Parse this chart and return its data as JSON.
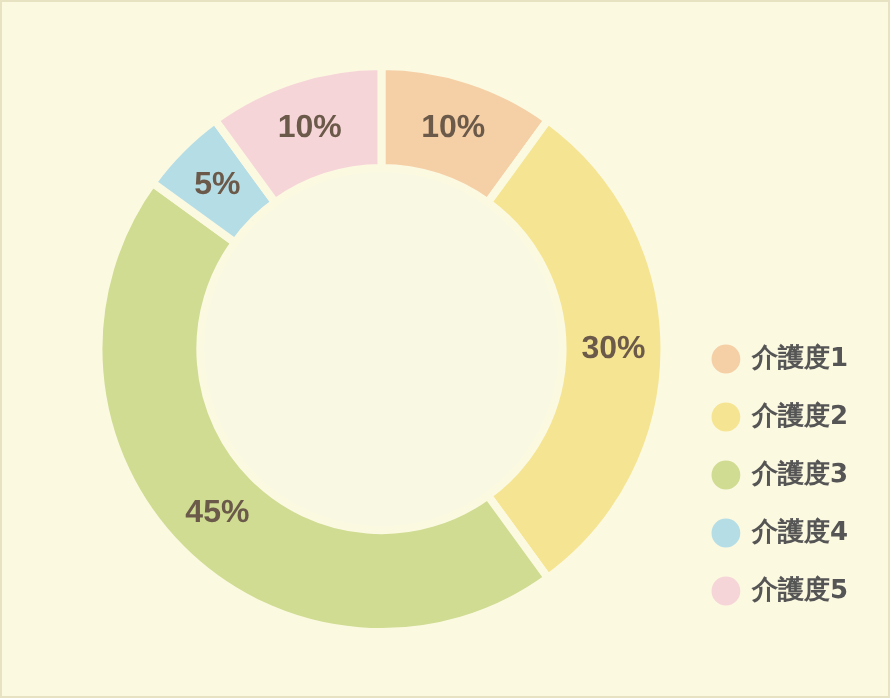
{
  "chart_data": {
    "type": "donut",
    "categories": [
      "介護度1",
      "介護度2",
      "介護度3",
      "介護度4",
      "介護度5"
    ],
    "values": [
      10,
      30,
      45,
      5,
      10
    ],
    "value_labels": [
      "10%",
      "30%",
      "45%",
      "5%",
      "10%"
    ],
    "colors": [
      "#f5cfa6",
      "#f5e491",
      "#cfdc92",
      "#b5dde6",
      "#f6d5d8"
    ],
    "legend": "bottom right"
  }
}
